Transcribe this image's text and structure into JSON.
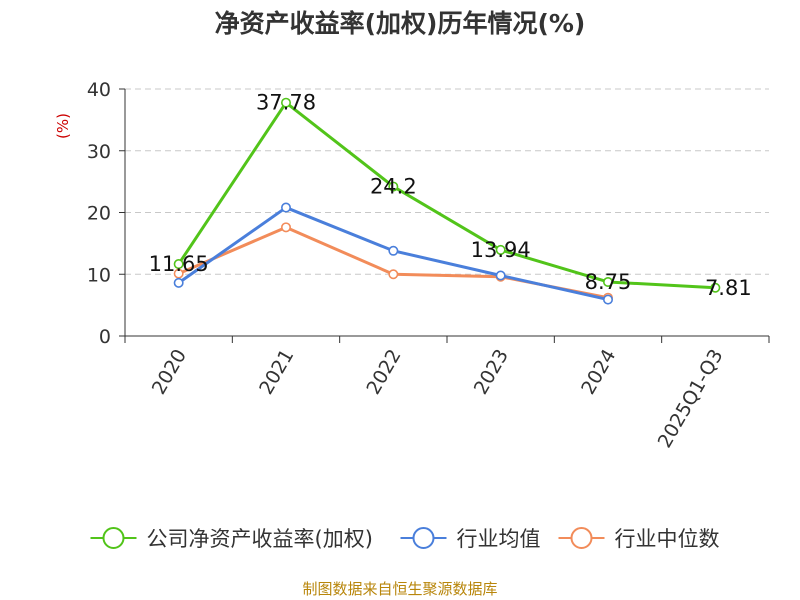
{
  "chart_data": {
    "type": "line",
    "title": "净资产收益率(加权)历年情况(%)",
    "ylabel": "(%)",
    "xlabel": "",
    "categories": [
      "2020",
      "2021",
      "2022",
      "2023",
      "2024",
      "2025Q1-Q3"
    ],
    "ylim": [
      0,
      40
    ],
    "yticks": [
      0,
      10,
      20,
      30,
      40
    ],
    "grid": true,
    "legend_position": "bottom",
    "series": [
      {
        "name": "公司净资产收益率(加权)",
        "color": "#52c41a",
        "values": [
          11.65,
          37.78,
          24.2,
          13.94,
          8.75,
          7.81
        ],
        "data_labels": [
          "11.65",
          "37.78",
          "24.2",
          "13.94",
          "8.75",
          "7.81"
        ]
      },
      {
        "name": "行业均值",
        "color": "#4a7fdb",
        "values": [
          8.6,
          20.8,
          13.8,
          9.8,
          5.9,
          null
        ]
      },
      {
        "name": "行业中位数",
        "color": "#f28c5a",
        "values": [
          10.1,
          17.6,
          10.0,
          9.6,
          6.2,
          null
        ]
      }
    ],
    "source": "制图数据来自恒生聚源数据库"
  }
}
